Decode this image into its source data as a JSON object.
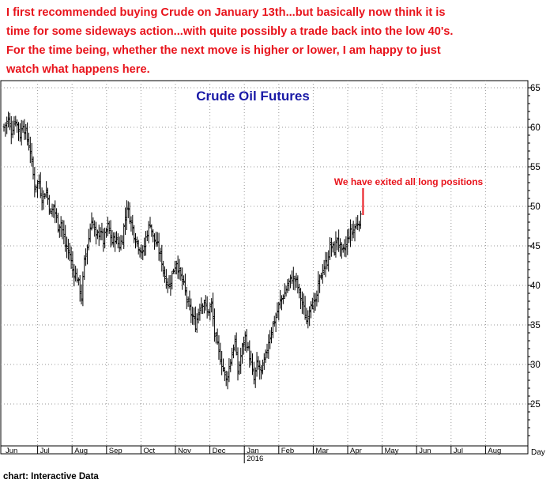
{
  "commentary": {
    "lines": [
      "I first recommended buying Crude on January 13th...but basically now think it is",
      "time for some sideways action...with quite possibly a trade back into the low 40's.",
      "For the time being, whether the next move is higher or lower, I am happy to just",
      "watch what happens here."
    ]
  },
  "source": "chart: Interactive Data",
  "colors": {
    "commentary": "#e8141c",
    "title": "#1a1aa6",
    "bars": "#000000",
    "annotation": "#e8141c"
  },
  "chart_data": {
    "type": "ohlc",
    "title": "Crude Oil Futures",
    "y_axis_position": "right",
    "ylim": [
      20,
      65
    ],
    "yticks": [
      25,
      30,
      35,
      40,
      45,
      50,
      55,
      60,
      65
    ],
    "grid": true,
    "x_axis_label": "Day",
    "year_label": "2016",
    "months": [
      "Jun",
      "Jul",
      "Aug",
      "Sep",
      "Oct",
      "Nov",
      "Dec",
      "Jan",
      "Feb",
      "Mar",
      "Apr",
      "May",
      "Jun",
      "Jul",
      "Aug"
    ],
    "annotation": {
      "text": "We have exited all long positions",
      "at_price": 49.5
    },
    "anchors": [
      [
        "Jun",
        60
      ],
      [
        "",
        61
      ],
      [
        "",
        59.5
      ],
      [
        "",
        61
      ],
      [
        "",
        59
      ],
      [
        "",
        60.5
      ],
      [
        "",
        58.5
      ],
      [
        "",
        57
      ],
      [
        "Jul",
        52.5
      ],
      [
        "",
        53
      ],
      [
        "",
        51
      ],
      [
        "",
        52
      ],
      [
        "",
        49
      ],
      [
        "",
        50
      ],
      [
        "",
        47.5
      ],
      [
        "",
        48
      ],
      [
        "Aug",
        45
      ],
      [
        "",
        44
      ],
      [
        "",
        42
      ],
      [
        "",
        41
      ],
      [
        "",
        38.5
      ],
      [
        "",
        43
      ],
      [
        "",
        46
      ],
      [
        "",
        48.5
      ],
      [
        "Sep",
        46
      ],
      [
        "",
        47
      ],
      [
        "",
        45.5
      ],
      [
        "",
        47.5
      ],
      [
        "",
        45.5
      ],
      [
        "",
        46
      ],
      [
        "",
        45
      ],
      [
        "",
        46
      ],
      [
        "Oct",
        50
      ],
      [
        "",
        48
      ],
      [
        "",
        46.5
      ],
      [
        "",
        45
      ],
      [
        "",
        44
      ],
      [
        "",
        46
      ],
      [
        "",
        48
      ],
      [
        "",
        46
      ],
      [
        "Nov",
        45
      ],
      [
        "",
        43
      ],
      [
        "",
        41
      ],
      [
        "",
        40
      ],
      [
        "",
        42
      ],
      [
        "",
        43
      ],
      [
        "",
        41
      ],
      [
        "",
        40
      ],
      [
        "Dec",
        37.5
      ],
      [
        "",
        36
      ],
      [
        "",
        35
      ],
      [
        "",
        37.5
      ],
      [
        "",
        38
      ],
      [
        "",
        36.5
      ],
      [
        "",
        37.5
      ],
      [
        "",
        34
      ],
      [
        "Jan",
        31.5
      ],
      [
        "",
        29.5
      ],
      [
        "",
        28
      ],
      [
        "",
        30.5
      ],
      [
        "",
        33
      ],
      [
        "",
        29
      ],
      [
        "",
        32
      ],
      [
        "",
        33.5
      ],
      [
        "Feb",
        31
      ],
      [
        "",
        28
      ],
      [
        "",
        30
      ],
      [
        "",
        29
      ],
      [
        "",
        31
      ],
      [
        "",
        33
      ],
      [
        "",
        35
      ],
      [
        "",
        36
      ],
      [
        "Mar",
        38
      ],
      [
        "",
        39
      ],
      [
        "",
        40
      ],
      [
        "",
        41
      ],
      [
        "",
        40.5
      ],
      [
        "",
        39
      ],
      [
        "",
        37
      ],
      [
        "",
        35.5
      ],
      [
        "Apr",
        38
      ],
      [
        "",
        37.5
      ],
      [
        "",
        40
      ],
      [
        "",
        42
      ],
      [
        "",
        43
      ],
      [
        "",
        45
      ],
      [
        "",
        44.5
      ],
      [
        "",
        46
      ],
      [
        "May",
        44
      ],
      [
        "",
        45
      ],
      [
        "",
        46.5
      ],
      [
        "",
        47
      ],
      [
        "",
        48
      ],
      [
        "",
        48.5
      ]
    ]
  }
}
